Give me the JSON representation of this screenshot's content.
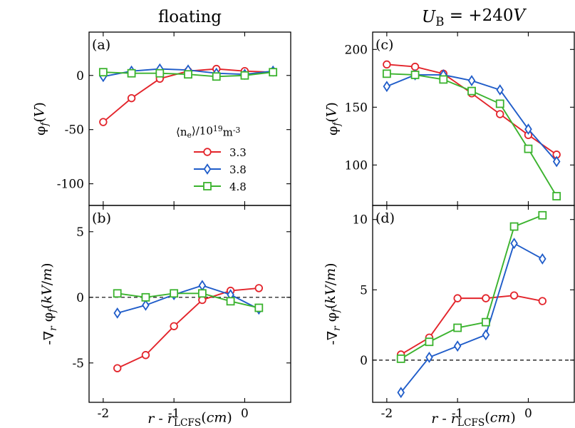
{
  "colors": {
    "c1": "#e3242b",
    "c2": "#1f5cc9",
    "c3": "#3bb32e"
  },
  "legend": {
    "title": "⟨n_e⟩/10^19m^-3",
    "entries": [
      {
        "label": "3.3",
        "color": "#e3242b",
        "marker": "circle"
      },
      {
        "label": "3.8",
        "color": "#1f5cc9",
        "marker": "diamond"
      },
      {
        "label": "4.8",
        "color": "#3bb32e",
        "marker": "square"
      }
    ]
  },
  "columns": [
    {
      "title": "floating",
      "title_math": false
    },
    {
      "title": "U_B = +240V",
      "title_math": true
    }
  ],
  "xlabel": "r - r_LCFS(cm)",
  "chart_data": [
    {
      "panel": "(a)",
      "type": "line",
      "ylabel": "φ_f(V)",
      "xlim": [
        -2.2,
        0.65
      ],
      "ylim": [
        -120,
        40
      ],
      "xticks": [
        -2,
        -1,
        0
      ],
      "xtick_labels": [
        "-2",
        "-1",
        "0"
      ],
      "yticks": [
        -100,
        -50,
        0
      ],
      "ytick_labels": [
        "-100",
        "-50",
        "0"
      ],
      "zero_line": false,
      "series": [
        {
          "name": "3.3",
          "marker": "circle",
          "x": [
            -2.0,
            -1.6,
            -1.2,
            -0.8,
            -0.4,
            0.0,
            0.4
          ],
          "y": [
            -43,
            -21,
            -3,
            4,
            6,
            4,
            3
          ]
        },
        {
          "name": "3.8",
          "marker": "diamond",
          "x": [
            -2.0,
            -1.6,
            -1.2,
            -0.8,
            -0.4,
            0.0,
            0.4
          ],
          "y": [
            -1,
            4,
            6,
            5,
            2,
            1,
            4
          ]
        },
        {
          "name": "4.8",
          "marker": "square",
          "x": [
            -2.0,
            -1.6,
            -1.2,
            -0.8,
            -0.4,
            0.0,
            0.4
          ],
          "y": [
            3,
            2,
            2,
            1,
            -1,
            0,
            3
          ]
        }
      ]
    },
    {
      "panel": "(b)",
      "type": "line",
      "ylabel": "-∇_r φ_f(kV/m)",
      "xlim": [
        -2.2,
        0.65
      ],
      "ylim": [
        -8,
        7
      ],
      "xticks": [
        -2,
        -1,
        0
      ],
      "xtick_labels": [
        "-2",
        "-1",
        "0"
      ],
      "yticks": [
        -5,
        0,
        5
      ],
      "ytick_labels": [
        "-5",
        "0",
        "5"
      ],
      "zero_line": true,
      "series": [
        {
          "name": "3.3",
          "marker": "circle",
          "x": [
            -1.8,
            -1.4,
            -1.0,
            -0.6,
            -0.2,
            0.2
          ],
          "y": [
            -5.4,
            -4.4,
            -2.2,
            -0.2,
            0.5,
            0.7
          ]
        },
        {
          "name": "3.8",
          "marker": "diamond",
          "x": [
            -1.8,
            -1.4,
            -1.0,
            -0.6,
            -0.2,
            0.2
          ],
          "y": [
            -1.2,
            -0.6,
            0.2,
            0.9,
            0.2,
            -0.9
          ]
        },
        {
          "name": "4.8",
          "marker": "square",
          "x": [
            -1.8,
            -1.4,
            -1.0,
            -0.6,
            -0.2,
            0.2
          ],
          "y": [
            0.3,
            0.0,
            0.3,
            0.3,
            -0.3,
            -0.8
          ]
        }
      ]
    },
    {
      "panel": "(c)",
      "type": "line",
      "ylabel": "φ_f(V)",
      "xlim": [
        -2.2,
        0.65
      ],
      "ylim": [
        65,
        215
      ],
      "xticks": [
        -2,
        -1,
        0
      ],
      "xtick_labels": [
        "-2",
        "-1",
        "0"
      ],
      "yticks": [
        100,
        150,
        200
      ],
      "ytick_labels": [
        "100",
        "150",
        "200"
      ],
      "zero_line": false,
      "series": [
        {
          "name": "3.3",
          "marker": "circle",
          "x": [
            -2.0,
            -1.6,
            -1.2,
            -0.8,
            -0.4,
            0.0,
            0.4
          ],
          "y": [
            187,
            185,
            179,
            162,
            144,
            126,
            109
          ]
        },
        {
          "name": "3.8",
          "marker": "diamond",
          "x": [
            -2.0,
            -1.6,
            -1.2,
            -0.8,
            -0.4,
            0.0,
            0.4
          ],
          "y": [
            168,
            178,
            178,
            173,
            165,
            131,
            103
          ]
        },
        {
          "name": "4.8",
          "marker": "square",
          "x": [
            -2.0,
            -1.6,
            -1.2,
            -0.8,
            -0.4,
            0.0,
            0.4
          ],
          "y": [
            179,
            178,
            174,
            164,
            153,
            114,
            73
          ]
        }
      ]
    },
    {
      "panel": "(d)",
      "type": "line",
      "ylabel": "-∇_r φ_f(kV/m)",
      "xlim": [
        -2.2,
        0.65
      ],
      "ylim": [
        -3,
        11
      ],
      "xticks": [
        -2,
        -1,
        0
      ],
      "xtick_labels": [
        "-2",
        "-1",
        "0"
      ],
      "yticks": [
        0,
        5,
        10
      ],
      "ytick_labels": [
        "0",
        "5",
        "10"
      ],
      "zero_line": true,
      "series": [
        {
          "name": "3.3",
          "marker": "circle",
          "x": [
            -1.8,
            -1.4,
            -1.0,
            -0.6,
            -0.2,
            0.2
          ],
          "y": [
            0.4,
            1.6,
            4.4,
            4.4,
            4.6,
            4.2
          ]
        },
        {
          "name": "3.8",
          "marker": "diamond",
          "x": [
            -1.8,
            -1.4,
            -1.0,
            -0.6,
            -0.2,
            0.2
          ],
          "y": [
            -2.3,
            0.2,
            1.0,
            1.8,
            8.3,
            7.2
          ]
        },
        {
          "name": "4.8",
          "marker": "square",
          "x": [
            -1.8,
            -1.4,
            -1.0,
            -0.6,
            -0.2,
            0.2
          ],
          "y": [
            0.1,
            1.3,
            2.3,
            2.7,
            9.5,
            10.3
          ]
        }
      ]
    }
  ]
}
